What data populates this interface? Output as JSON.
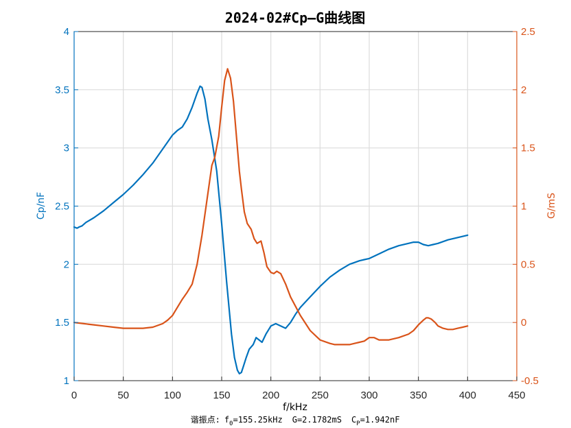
{
  "chart_data": {
    "type": "line",
    "title": "2024-02#Cp—G曲线图",
    "xlabel": "f/kHz",
    "ylabel_left": "Cp/nF",
    "ylabel_right": "G/mS",
    "xlim": [
      0,
      450
    ],
    "ylim_left": [
      1,
      4
    ],
    "ylim_right": [
      -0.5,
      2.5
    ],
    "grid": "vertical-and-horizontal",
    "x_ticks": [
      "0",
      "50",
      "100",
      "150",
      "200",
      "250",
      "300",
      "350",
      "400",
      "450"
    ],
    "y_ticks_left": [
      "1",
      "1.5",
      "2",
      "2.5",
      "3",
      "3.5",
      "4"
    ],
    "y_ticks_right": [
      "-0.5",
      "0",
      "0.5",
      "1",
      "1.5",
      "2",
      "2.5"
    ],
    "colors": {
      "cp": "#0072BD",
      "g": "#D95319"
    },
    "series": [
      {
        "key": "cp",
        "axis": "left",
        "x": [
          0,
          3,
          5,
          8,
          12,
          20,
          30,
          40,
          50,
          60,
          70,
          80,
          90,
          100,
          105,
          110,
          115,
          120,
          125,
          128,
          130,
          133,
          136,
          140,
          145,
          150,
          155,
          160,
          163,
          166,
          168,
          170,
          172,
          175,
          178,
          182,
          185,
          188,
          191,
          195,
          200,
          205,
          210,
          215,
          220,
          225,
          230,
          240,
          250,
          260,
          270,
          280,
          290,
          295,
          300,
          305,
          310,
          320,
          330,
          340,
          345,
          350,
          355,
          360,
          365,
          370,
          380,
          390,
          400
        ],
        "y": [
          2.32,
          2.31,
          2.32,
          2.33,
          2.36,
          2.4,
          2.46,
          2.53,
          2.6,
          2.68,
          2.77,
          2.87,
          2.99,
          3.11,
          3.15,
          3.18,
          3.25,
          3.35,
          3.47,
          3.53,
          3.52,
          3.42,
          3.25,
          3.07,
          2.8,
          2.35,
          1.85,
          1.4,
          1.2,
          1.09,
          1.06,
          1.07,
          1.12,
          1.2,
          1.27,
          1.31,
          1.37,
          1.35,
          1.33,
          1.4,
          1.47,
          1.49,
          1.47,
          1.45,
          1.5,
          1.57,
          1.63,
          1.72,
          1.81,
          1.89,
          1.95,
          2.0,
          2.03,
          2.04,
          2.05,
          2.07,
          2.09,
          2.13,
          2.16,
          2.18,
          2.19,
          2.19,
          2.17,
          2.16,
          2.17,
          2.18,
          2.21,
          2.23,
          2.25
        ]
      },
      {
        "key": "g",
        "axis": "right",
        "x": [
          0,
          10,
          20,
          30,
          40,
          50,
          60,
          70,
          80,
          90,
          95,
          100,
          105,
          110,
          115,
          120,
          125,
          130,
          135,
          140,
          143,
          147,
          150,
          153,
          156,
          159,
          162,
          165,
          168,
          170,
          173,
          176,
          180,
          183,
          186,
          190,
          193,
          196,
          200,
          203,
          206,
          210,
          215,
          220,
          230,
          240,
          250,
          260,
          265,
          270,
          275,
          280,
          285,
          290,
          295,
          300,
          305,
          310,
          320,
          330,
          340,
          345,
          350,
          355,
          358,
          360,
          363,
          367,
          370,
          375,
          380,
          385,
          390,
          395,
          400
        ],
        "y": [
          0.0,
          -0.01,
          -0.02,
          -0.03,
          -0.04,
          -0.05,
          -0.05,
          -0.05,
          -0.04,
          -0.01,
          0.02,
          0.06,
          0.13,
          0.2,
          0.26,
          0.33,
          0.5,
          0.75,
          1.05,
          1.35,
          1.42,
          1.6,
          1.85,
          2.08,
          2.18,
          2.1,
          1.9,
          1.6,
          1.3,
          1.15,
          0.95,
          0.85,
          0.8,
          0.72,
          0.68,
          0.7,
          0.6,
          0.48,
          0.43,
          0.42,
          0.44,
          0.42,
          0.33,
          0.22,
          0.06,
          -0.07,
          -0.15,
          -0.18,
          -0.19,
          -0.19,
          -0.19,
          -0.19,
          -0.18,
          -0.17,
          -0.16,
          -0.13,
          -0.13,
          -0.15,
          -0.15,
          -0.13,
          -0.1,
          -0.07,
          -0.02,
          0.02,
          0.04,
          0.04,
          0.03,
          0.0,
          -0.03,
          -0.05,
          -0.06,
          -0.06,
          -0.05,
          -0.04,
          -0.03
        ]
      }
    ],
    "annotation": {
      "prefix": "谐振点:",
      "f_symbol": "f",
      "f_sub": "0",
      "f_value": "=155.25kHz",
      "g_text": "G=2.1782mS",
      "c_symbol": "C",
      "c_sub": "P",
      "c_value": "=1.942nF"
    }
  }
}
